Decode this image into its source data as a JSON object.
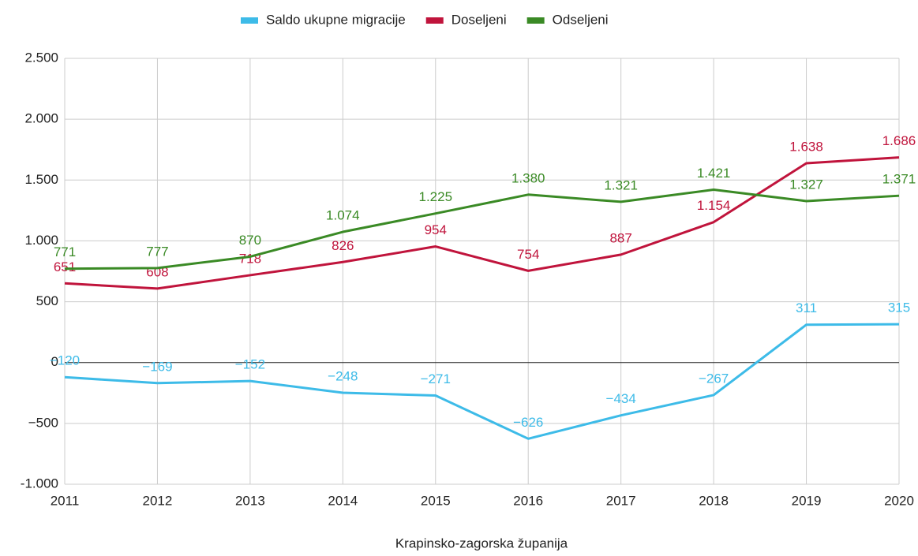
{
  "chart_data": {
    "type": "line",
    "xlabel": "Krapinsko-zagorska županija",
    "x": [
      2011,
      2012,
      2013,
      2014,
      2015,
      2016,
      2017,
      2018,
      2019,
      2020
    ],
    "xlim": [
      2011,
      2020
    ],
    "xticks": [
      2011,
      2012,
      2013,
      2014,
      2015,
      2016,
      2017,
      2018,
      2019,
      2020
    ],
    "ylim": [
      -1000,
      2500
    ],
    "yticks": [
      {
        "value": -1000,
        "label": "-1.000"
      },
      {
        "value": -500,
        "label": "−500"
      },
      0,
      500,
      {
        "value": 1000,
        "label": "1.000"
      },
      {
        "value": 1500,
        "label": "1.500"
      },
      {
        "value": 2000,
        "label": "2.000"
      },
      {
        "value": 2500,
        "label": "2.500"
      }
    ],
    "grid": true,
    "legend": "top",
    "series": [
      {
        "name": "Saldo ukupne migracije",
        "color": "#3dbbe8",
        "values": [
          -120,
          -169,
          -152,
          -248,
          -271,
          -626,
          -434,
          -267,
          311,
          315
        ],
        "value_labels": [
          "−120",
          "−169",
          "−152",
          "−248",
          "−271",
          "−626",
          "−434",
          "−267",
          "311",
          "315"
        ]
      },
      {
        "name": "Doseljeni",
        "color": "#c0143c",
        "values": [
          651,
          608,
          718,
          826,
          954,
          754,
          887,
          1154,
          1638,
          1686
        ],
        "value_labels": [
          "651",
          "608",
          "718",
          "826",
          "954",
          "754",
          "887",
          "1.154",
          "1.638",
          "1.686"
        ]
      },
      {
        "name": "Odseljeni",
        "color": "#3a8a25",
        "values": [
          771,
          777,
          870,
          1074,
          1225,
          1380,
          1321,
          1421,
          1327,
          1371
        ],
        "value_labels": [
          "771",
          "777",
          "870",
          "1.074",
          "1.225",
          "1.380",
          "1.321",
          "1.421",
          "1.327",
          "1.371"
        ]
      }
    ]
  }
}
